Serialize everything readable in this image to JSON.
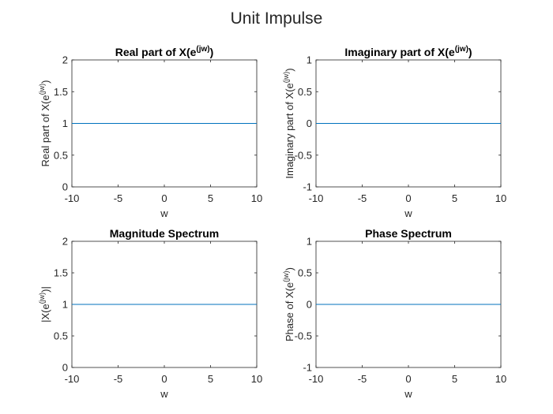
{
  "figure": {
    "title": "Unit Impulse",
    "line_color": "#0072BD",
    "axes_color": "#262626"
  },
  "chart_data": [
    {
      "type": "line",
      "title": {
        "before": "Real part of X(e",
        "sup": "(jw)",
        "after": ")"
      },
      "xlabel": "w",
      "ylabel": {
        "before": "Real part of X(e",
        "sup": "(jw)",
        "after": ")"
      },
      "x": [
        -10,
        10
      ],
      "series": [
        {
          "values": [
            1,
            1
          ]
        }
      ],
      "xlim": [
        -10,
        10
      ],
      "ylim": [
        0,
        2
      ],
      "xticks": [
        "-10",
        "-5",
        "0",
        "5",
        "10"
      ],
      "yticks": [
        "0",
        "0.5",
        "1",
        "1.5",
        "2"
      ],
      "grid": false
    },
    {
      "type": "line",
      "title": {
        "before": "Imaginary part of X(e",
        "sup": "(jw)",
        "after": ")"
      },
      "xlabel": "w",
      "ylabel": {
        "before": "Imaginary part of X(e",
        "sup": "(jw)",
        "after": ")"
      },
      "x": [
        -10,
        10
      ],
      "series": [
        {
          "values": [
            0,
            0
          ]
        }
      ],
      "xlim": [
        -10,
        10
      ],
      "ylim": [
        -1,
        1
      ],
      "xticks": [
        "-10",
        "-5",
        "0",
        "5",
        "10"
      ],
      "yticks": [
        "-1",
        "-0.5",
        "0",
        "0.5",
        "1"
      ],
      "grid": false
    },
    {
      "type": "line",
      "title": {
        "before": "Magnitude Spectrum",
        "sup": "",
        "after": ""
      },
      "xlabel": "w",
      "ylabel": {
        "before": "|X(e",
        "sup": "(jw)",
        "after": ")|"
      },
      "x": [
        -10,
        10
      ],
      "series": [
        {
          "values": [
            1,
            1
          ]
        }
      ],
      "xlim": [
        -10,
        10
      ],
      "ylim": [
        0,
        2
      ],
      "xticks": [
        "-10",
        "-5",
        "0",
        "5",
        "10"
      ],
      "yticks": [
        "0",
        "0.5",
        "1",
        "1.5",
        "2"
      ],
      "grid": false
    },
    {
      "type": "line",
      "title": {
        "before": "Phase Spectrum",
        "sup": "",
        "after": ""
      },
      "xlabel": "w",
      "ylabel": {
        "before": "Phase of X(e",
        "sup": "(jw)",
        "after": ")"
      },
      "x": [
        -10,
        10
      ],
      "series": [
        {
          "values": [
            0,
            0
          ]
        }
      ],
      "xlim": [
        -10,
        10
      ],
      "ylim": [
        -1,
        1
      ],
      "xticks": [
        "-10",
        "-5",
        "0",
        "5",
        "10"
      ],
      "yticks": [
        "-1",
        "-0.5",
        "0",
        "0.5",
        "1"
      ],
      "grid": false
    }
  ]
}
